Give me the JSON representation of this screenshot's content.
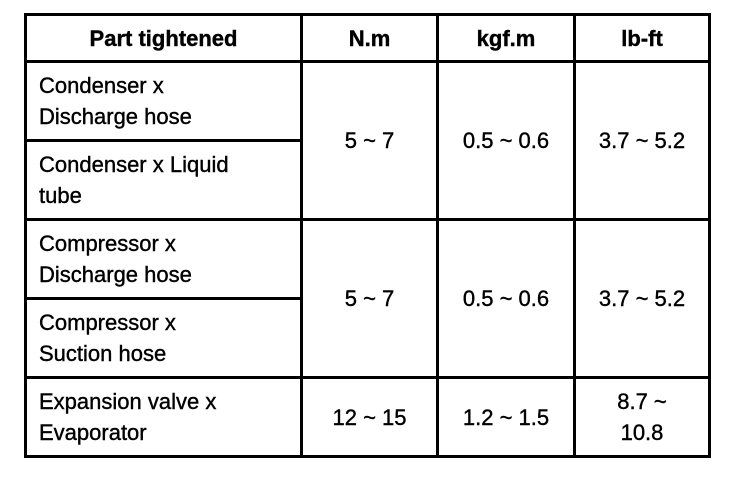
{
  "table": {
    "headers": [
      "Part tightened",
      "N.m",
      "kgf.m",
      "lb-ft"
    ],
    "groups": [
      {
        "parts": [
          [
            "Condenser  x",
            "Discharge hose"
          ],
          [
            "Condenser x Liquid",
            "tube"
          ]
        ],
        "nm": "5 ~ 7",
        "kgfm": "0.5 ~ 0.6",
        "lbft": "3.7 ~ 5.2"
      },
      {
        "parts": [
          [
            "Compressor  x",
            "Discharge hose"
          ],
          [
            "Compressor  x",
            "Suction hose"
          ]
        ],
        "nm": "5 ~ 7",
        "kgfm": "0.5 ~ 0.6",
        "lbft": "3.7 ~ 5.2"
      },
      {
        "parts": [
          [
            "Expansion valve x",
            "Evaporator"
          ]
        ],
        "nm": "12 ~ 15",
        "kgfm": "1.2 ~ 1.5",
        "lbft": [
          "8.7  ~",
          "10.8"
        ]
      }
    ]
  }
}
